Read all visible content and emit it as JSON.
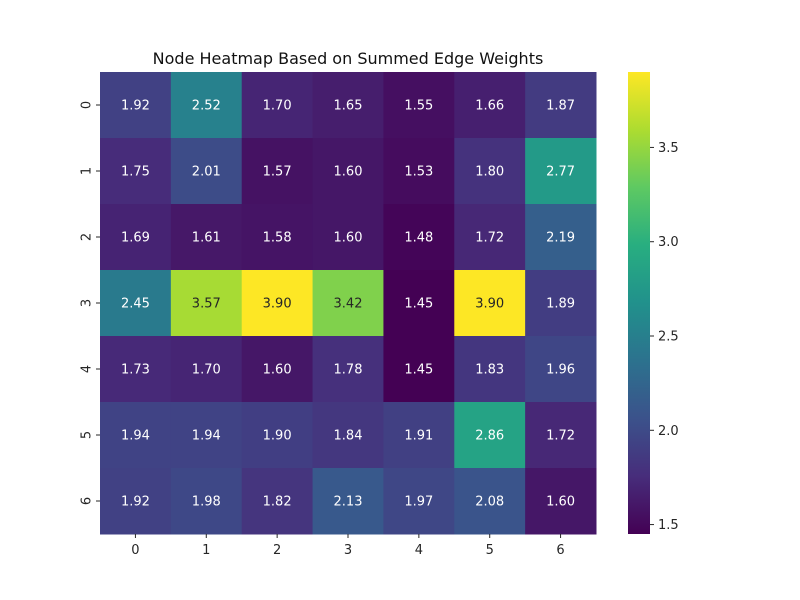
{
  "chart_data": {
    "type": "heatmap",
    "title": "Node Heatmap Based on Summed Edge Weights",
    "xlabel": "",
    "ylabel": "",
    "x_categories": [
      "0",
      "1",
      "2",
      "3",
      "4",
      "5",
      "6"
    ],
    "y_categories": [
      "0",
      "1",
      "2",
      "3",
      "4",
      "5",
      "6"
    ],
    "values": [
      [
        1.92,
        2.52,
        1.7,
        1.65,
        1.55,
        1.66,
        1.87
      ],
      [
        1.75,
        2.01,
        1.57,
        1.6,
        1.53,
        1.8,
        2.77
      ],
      [
        1.69,
        1.61,
        1.58,
        1.6,
        1.48,
        1.72,
        2.19
      ],
      [
        2.45,
        3.57,
        3.9,
        3.42,
        1.45,
        3.9,
        1.89
      ],
      [
        1.73,
        1.7,
        1.6,
        1.78,
        1.45,
        1.83,
        1.96
      ],
      [
        1.94,
        1.94,
        1.9,
        1.84,
        1.91,
        2.86,
        1.72
      ],
      [
        1.92,
        1.98,
        1.82,
        2.13,
        1.97,
        2.08,
        1.6
      ]
    ],
    "annotation_format": "0.00",
    "colormap": "viridis",
    "color_range": [
      1.45,
      3.9
    ],
    "colorbar_ticks": [
      "1.5",
      "2.0",
      "2.5",
      "3.0",
      "3.5"
    ],
    "grid": false,
    "colorbar_position": "right"
  }
}
